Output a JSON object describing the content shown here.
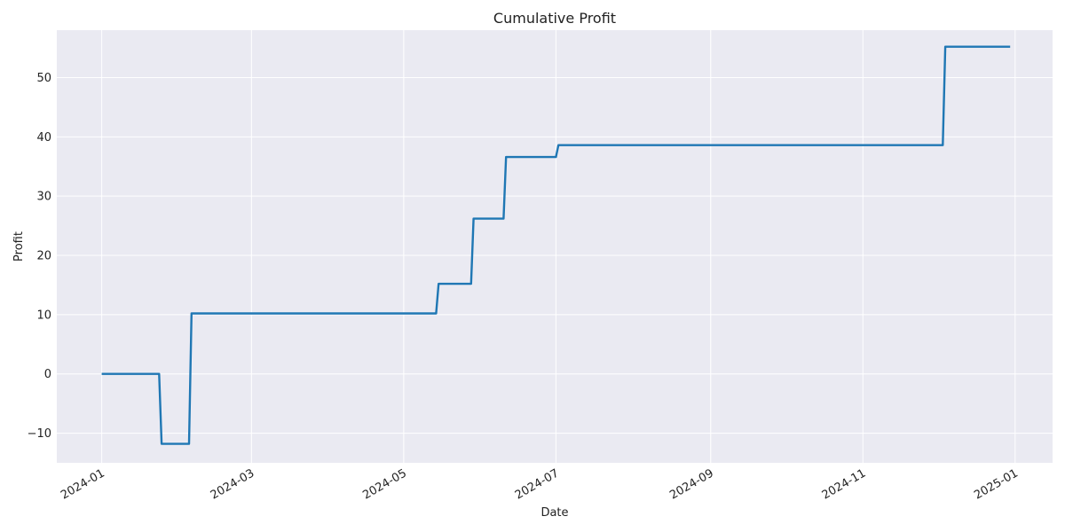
{
  "chart_data": {
    "type": "line",
    "title": "Cumulative Profit",
    "xlabel": "Date",
    "ylabel": "Profit",
    "x_is_date": true,
    "xlim": [
      "2023-12-14",
      "2025-01-16"
    ],
    "ylim": [
      -15,
      58
    ],
    "x_ticks": [
      "2024-01-01",
      "2024-03-01",
      "2024-05-01",
      "2024-07-01",
      "2024-09-01",
      "2024-11-01",
      "2025-01-01"
    ],
    "x_tick_labels": [
      "2024-01",
      "2024-03",
      "2024-05",
      "2024-07",
      "2024-09",
      "2024-11",
      "2025-01"
    ],
    "y_ticks": [
      -10,
      0,
      10,
      20,
      30,
      40,
      50
    ],
    "y_tick_labels": [
      "−10",
      "0",
      "10",
      "20",
      "30",
      "40",
      "50"
    ],
    "grid": true,
    "series": [
      {
        "color": "#1f77b4",
        "x": [
          "2024-01-01",
          "2024-01-24",
          "2024-01-25",
          "2024-02-05",
          "2024-02-06",
          "2024-05-14",
          "2024-05-15",
          "2024-05-28",
          "2024-05-29",
          "2024-06-10",
          "2024-06-11",
          "2024-07-01",
          "2024-07-02",
          "2024-12-03",
          "2024-12-04",
          "2024-12-30"
        ],
        "y": [
          0,
          0,
          -11.8,
          -11.8,
          10.2,
          10.2,
          15.2,
          15.2,
          26.2,
          26.2,
          36.6,
          36.6,
          38.6,
          38.6,
          55.2,
          55.2
        ]
      }
    ]
  }
}
